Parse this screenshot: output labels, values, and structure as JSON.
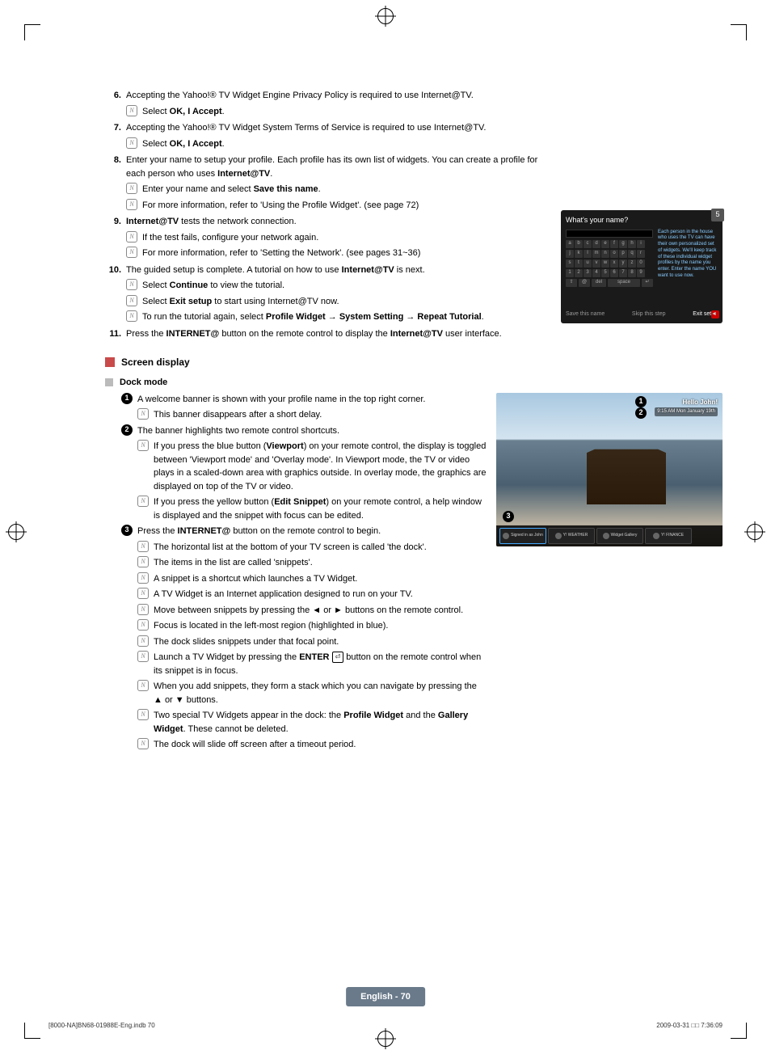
{
  "steps": [
    {
      "n": "6.",
      "text": "Accepting the Yahoo!® TV Widget Engine Privacy Policy is required to use Internet@TV.",
      "subs": [
        {
          "pre": "Select ",
          "bold": "OK, I Accept",
          "post": "."
        }
      ]
    },
    {
      "n": "7.",
      "text": "Accepting the Yahoo!® TV Widget System Terms of Service is required to use Internet@TV.",
      "subs": [
        {
          "pre": "Select ",
          "bold": "OK, I Accept",
          "post": "."
        }
      ]
    },
    {
      "n": "8.",
      "pre": "Enter your name to setup your profile. Each profile has its own list of widgets. You can create a profile for each person who uses ",
      "bold": "Internet@TV",
      "post": ".",
      "subs": [
        {
          "pre": "Enter your name and select ",
          "bold": "Save this name",
          "post": "."
        },
        {
          "pre": "For more information, refer to 'Using the Profile Widget'. (see page 72)",
          "bold": "",
          "post": ""
        }
      ]
    },
    {
      "n": "9.",
      "boldfirst": "Internet@TV",
      "text": " tests the network connection.",
      "subs": [
        {
          "pre": "If the test fails, configure your network again.",
          "bold": "",
          "post": ""
        },
        {
          "pre": "For more information, refer to 'Setting the Network'. (see pages 31~36)",
          "bold": "",
          "post": ""
        }
      ]
    },
    {
      "n": "10.",
      "pre": "The guided setup is complete. A tutorial on how to use ",
      "bold": "Internet@TV",
      "post": " is next.",
      "subs": [
        {
          "pre": "Select ",
          "bold": "Continue",
          "post": " to view the tutorial."
        },
        {
          "pre": "Select ",
          "bold": "Exit setup",
          "post": " to start using Internet@TV now."
        },
        {
          "pre": "To run the tutorial again, select ",
          "bold": "Profile Widget → System Setting → Repeat Tutorial",
          "post": "."
        }
      ]
    },
    {
      "n": "11.",
      "pre": "Press the ",
      "bold": "INTERNET@",
      "post": " button on the remote control to display the ",
      "bold2": "Internet@TV",
      "post2": " user interface."
    }
  ],
  "section": "Screen display",
  "subsection": "Dock mode",
  "bullets": [
    {
      "n": "1",
      "text": "A welcome banner is shown with your profile name in the top right corner.",
      "subs": [
        "This banner disappears after a short delay."
      ]
    },
    {
      "n": "2",
      "text": "The banner highlights two remote control shortcuts.",
      "subs": [
        "If you press the blue button (<b>Viewport</b>) on your remote control, the display is toggled between 'Viewport mode' and 'Overlay mode'. In Viewport mode, the TV or video plays in a scaled-down area with graphics outside. In overlay mode, the graphics are displayed on top of the TV or video.",
        "If you press the yellow button (<b>Edit Snippet</b>) on your remote control, a help window is displayed and the snippet with focus can be edited."
      ]
    },
    {
      "n": "3",
      "pre": "Press the ",
      "bold": "INTERNET@",
      "post": " button on the remote control to begin.",
      "subs": [
        "The horizontal list at the bottom of your TV screen is called 'the dock'.",
        "The items in the list are called 'snippets'.",
        "A snippet is a shortcut which launches a TV Widget.",
        "A TV Widget is an Internet application designed to run on your TV.",
        "Move between snippets by pressing the ◄ or ► buttons on the remote control.",
        "Focus is located in the left-most region (highlighted in blue).",
        "The dock slides snippets under that focal point.",
        "Launch a TV Widget by pressing the <b>ENTER</b> <span class=\"enter-icon\">⏎</span> button on the remote control when its snippet is in focus.",
        "When you add snippets, they form a stack which you can navigate by pressing the ▲ or ▼ buttons.",
        "Two special TV Widgets appear in the dock: the <b>Profile Widget</b> and the <b>Gallery Widget</b>. These cannot be deleted.",
        "The dock will slide off screen after a timeout period."
      ]
    }
  ],
  "shot1": {
    "title": "What's your name?",
    "badge": "5",
    "keys": [
      [
        "a",
        "b",
        "c",
        "d",
        "e",
        "f",
        "g",
        "h",
        "i"
      ],
      [
        "j",
        "k",
        "l",
        "m",
        "n",
        "o",
        "p",
        "q",
        "r"
      ],
      [
        "s",
        "t",
        "u",
        "v",
        "w",
        "x",
        "y",
        "z",
        "0"
      ],
      [
        "1",
        "2",
        "3",
        "4",
        "5",
        "6",
        "7",
        "8",
        "9"
      ]
    ],
    "bottom": [
      "⇧",
      "@",
      "del",
      "space",
      "↵"
    ],
    "desc": "Each person in the house who uses the TV can have their own personalized set of widgets. We'll keep track of these individual widget profiles by the name you enter. Enter the name YOU want to use now.",
    "footer": [
      "Save this name",
      "Skip this step",
      "Exit setup"
    ]
  },
  "shot2": {
    "hello": "Hello John!",
    "time": "9:15 AM Mon January 19th",
    "snippets": [
      {
        "label": "Signed in as John"
      },
      {
        "label": "Y! WEATHER"
      },
      {
        "label": "Widget Gallery"
      },
      {
        "label": "Y! FINANCE"
      }
    ]
  },
  "footer_center": "English - 70",
  "footer_left": "[8000-NA]BN68-01988E-Eng.indb   70",
  "footer_right": "2009-03-31   □□ 7:36:09"
}
